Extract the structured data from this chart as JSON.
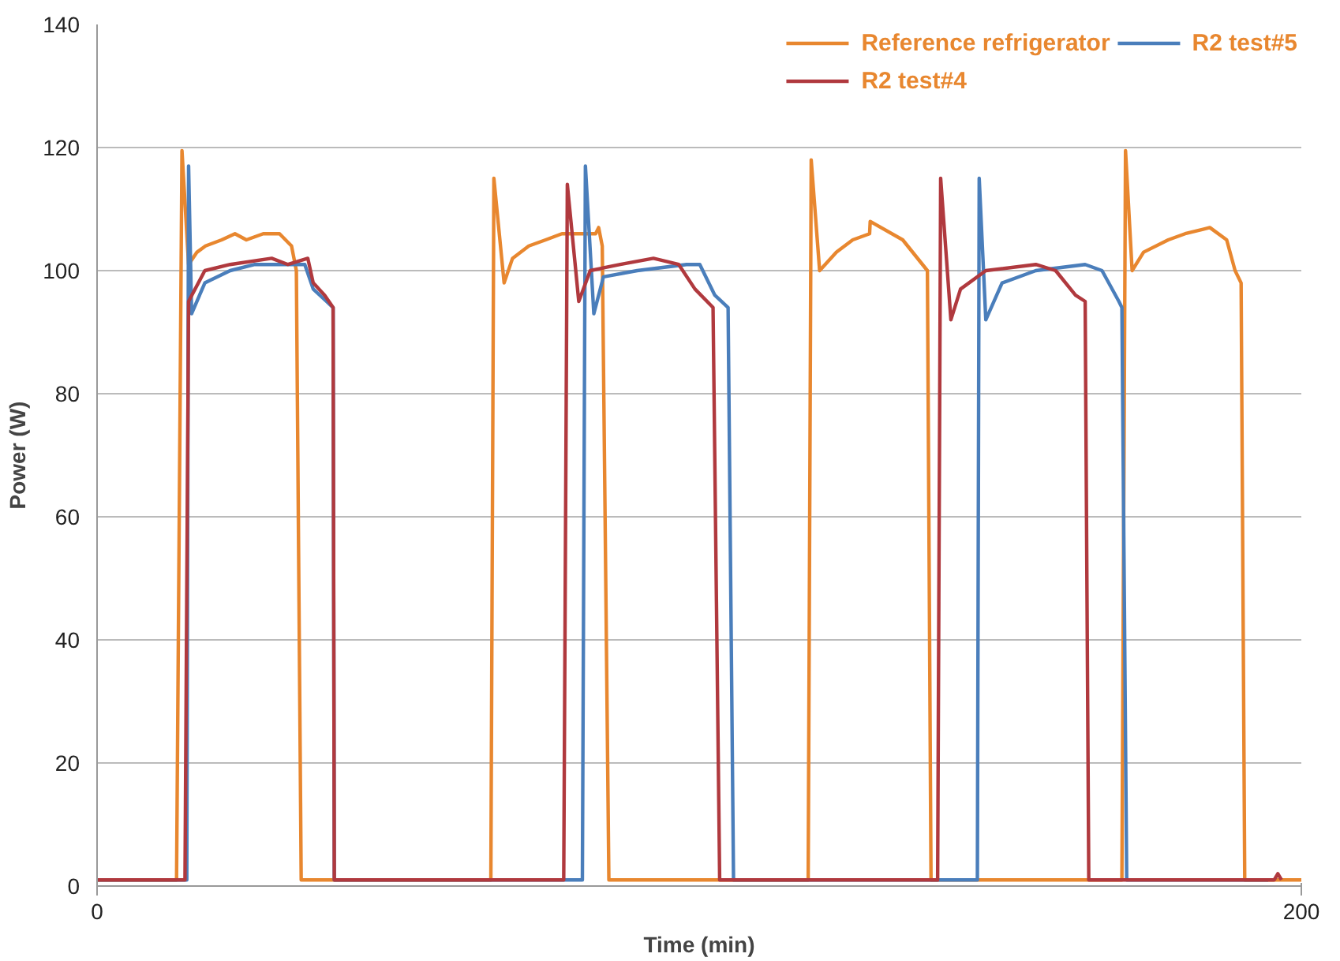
{
  "chart_data": {
    "type": "line",
    "xlabel": "Time (min)",
    "ylabel": "Power (W)",
    "xlim": [
      0,
      200
    ],
    "xticks": [
      0,
      200
    ],
    "ylim": [
      0,
      140
    ],
    "yticks": [
      0,
      20,
      40,
      60,
      80,
      100,
      120,
      140
    ],
    "grid": "y",
    "legend": "top right",
    "line_style": "solid",
    "marker": "none",
    "series": [
      {
        "name": "Reference refrigerator",
        "color": "#e8872f",
        "x": [
          0,
          13.2,
          14.1,
          15.2,
          16.6,
          18,
          20.7,
          22.9,
          24.8,
          27.6,
          30.3,
          32.3,
          33.1,
          33.9,
          65.4,
          65.9,
          67.6,
          69,
          71.7,
          74.5,
          77.2,
          82.8,
          83.3,
          83.9,
          85,
          118.1,
          118.6,
          120,
          122.8,
          125.5,
          128.3,
          128.4,
          133.8,
          137.9,
          138.5,
          170.2,
          170.8,
          171.9,
          173.8,
          177.9,
          180.7,
          184.8,
          187.6,
          189,
          190,
          190.6,
          200
        ],
        "values": [
          1,
          1,
          119.5,
          101,
          103,
          104,
          105,
          106,
          105,
          106,
          106,
          104,
          100,
          1,
          1,
          115,
          98,
          102,
          104,
          105,
          106,
          106,
          107,
          104,
          1,
          1,
          118,
          100,
          103,
          105,
          106,
          108,
          105,
          100,
          1,
          1,
          119.5,
          100,
          103,
          105,
          106,
          107,
          105,
          100,
          98,
          1,
          1
        ]
      },
      {
        "name": "R2 test#5",
        "color": "#4a7ebb",
        "x": [
          0,
          14.9,
          15.2,
          15.7,
          17.9,
          22.1,
          26.2,
          34.5,
          35.9,
          38.1,
          39.2,
          39.4,
          80.6,
          81.1,
          82.5,
          84.1,
          89.7,
          97.9,
          100.1,
          102.6,
          104.8,
          105.7,
          146.2,
          146.5,
          147.6,
          150.3,
          155.9,
          164.1,
          166.9,
          169.7,
          170.2,
          171,
          194.5
        ],
        "values": [
          1,
          1,
          117,
          93,
          98,
          100,
          101,
          101,
          97,
          95,
          94,
          1,
          1,
          117,
          93,
          99,
          100,
          101,
          101,
          96,
          94,
          1,
          1,
          115,
          92,
          98,
          100,
          101,
          100,
          95,
          94,
          1,
          1
        ]
      },
      {
        "name": "R2 test#4",
        "color": "#b0393e",
        "x": [
          0,
          14.6,
          15.2,
          17.9,
          22.1,
          29,
          31.7,
          35,
          35.9,
          37.8,
          39.2,
          39.4,
          77.5,
          78.1,
          80,
          81.9,
          86.9,
          92.4,
          96.6,
          99.3,
          102.3,
          103.4,
          139.6,
          140.1,
          141.8,
          143.4,
          147.6,
          155.9,
          159.2,
          162.5,
          164.1,
          164.7,
          195.5,
          196.1,
          196.7
        ],
        "values": [
          1,
          1,
          95,
          100,
          101,
          102,
          101,
          102,
          98,
          96,
          94,
          1,
          1,
          114,
          95,
          100,
          101,
          102,
          101,
          97,
          94,
          1,
          1,
          115,
          92,
          97,
          100,
          101,
          100,
          96,
          95,
          1,
          1,
          2,
          1
        ]
      }
    ]
  }
}
